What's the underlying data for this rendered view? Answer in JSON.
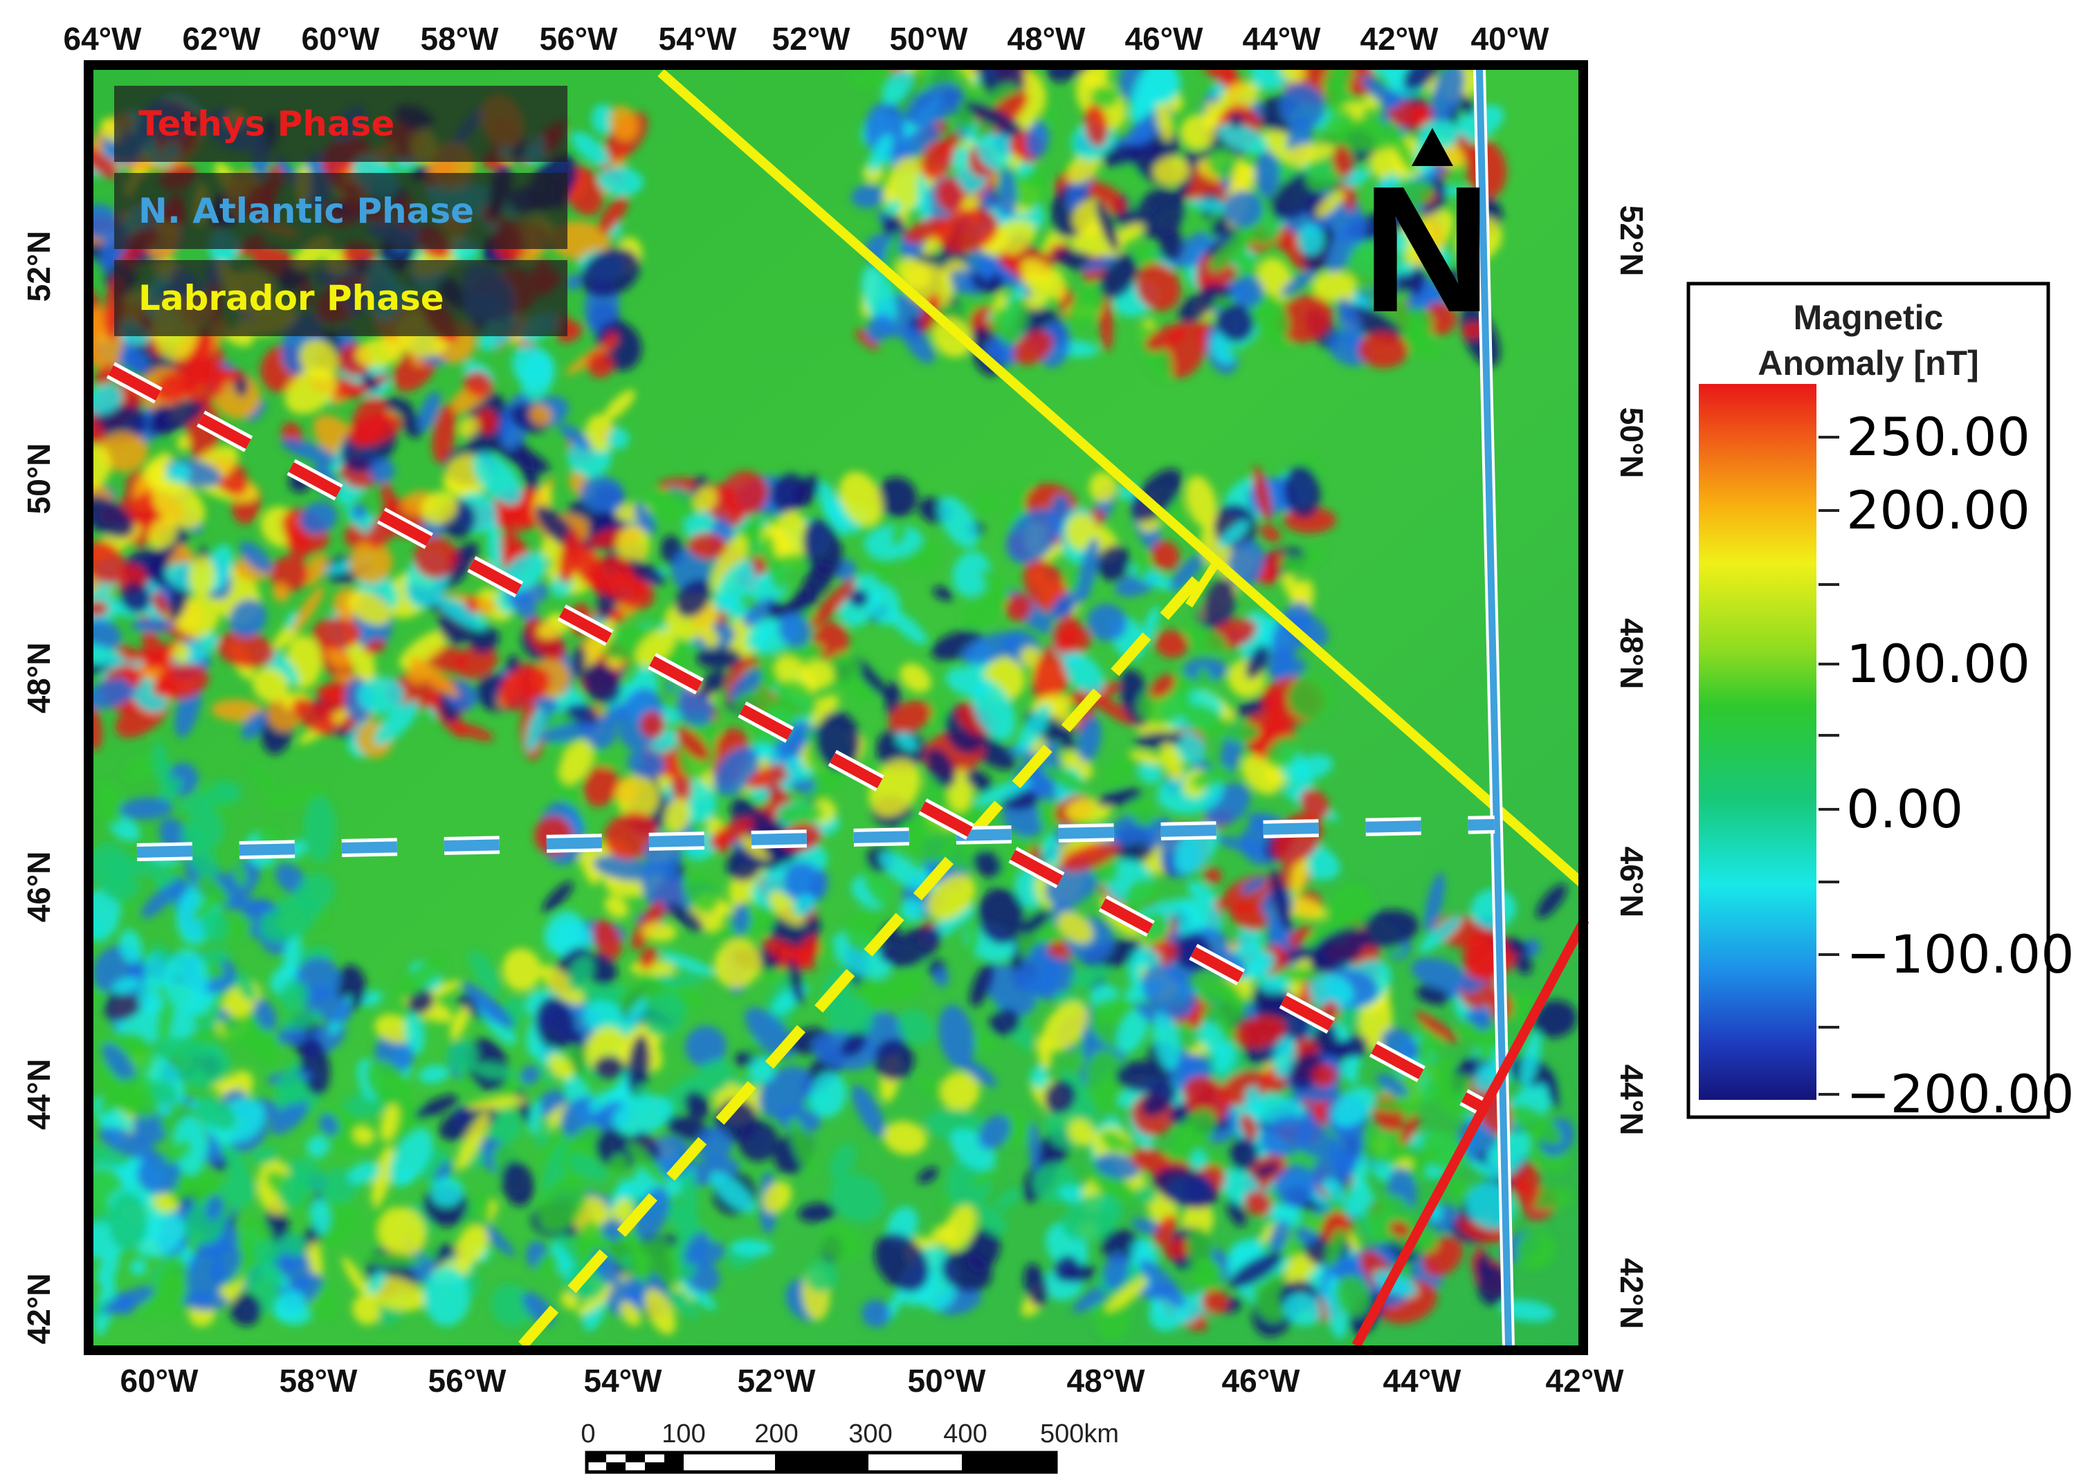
{
  "map": {
    "top_lon_labels": [
      "64°W",
      "62°W",
      "60°W",
      "58°W",
      "56°W",
      "54°W",
      "52°W",
      "50°W",
      "48°W",
      "46°W",
      "44°W",
      "42°W",
      "40°W"
    ],
    "bottom_lon_labels": [
      "60°W",
      "58°W",
      "56°W",
      "54°W",
      "52°W",
      "50°W",
      "48°W",
      "46°W",
      "44°W",
      "42°W"
    ],
    "left_lat_labels": [
      "52°N",
      "50°N",
      "48°N",
      "46°N",
      "44°N",
      "42°N"
    ],
    "right_lat_labels": [
      "52°N",
      "50°N",
      "48°N",
      "46°N",
      "44°N",
      "42°N"
    ],
    "north_arrow": {
      "icon": "north-arrow-icon",
      "letter": "N"
    }
  },
  "phases": [
    {
      "label": "Tethys Phase",
      "color": "#e81c1c"
    },
    {
      "label": "N. Atlantic Phase",
      "color": "#3ea0dc"
    },
    {
      "label": "Labrador Phase",
      "color": "#f2f20a"
    }
  ],
  "legend": {
    "title_line1": "Magnetic",
    "title_line2": "Anomaly [nT]",
    "ticks": [
      "250.00",
      "200.00",
      "100.00",
      "0.00",
      "−100.00",
      "−200.00"
    ],
    "colors": [
      "#e81818",
      "#f8a010",
      "#f0f018",
      "#2ec82e",
      "#18c878",
      "#18e8e8",
      "#1e6ee0",
      "#141478"
    ]
  },
  "scale_bar": {
    "labels": [
      "0",
      "100",
      "200",
      "300",
      "400",
      "500km"
    ]
  }
}
